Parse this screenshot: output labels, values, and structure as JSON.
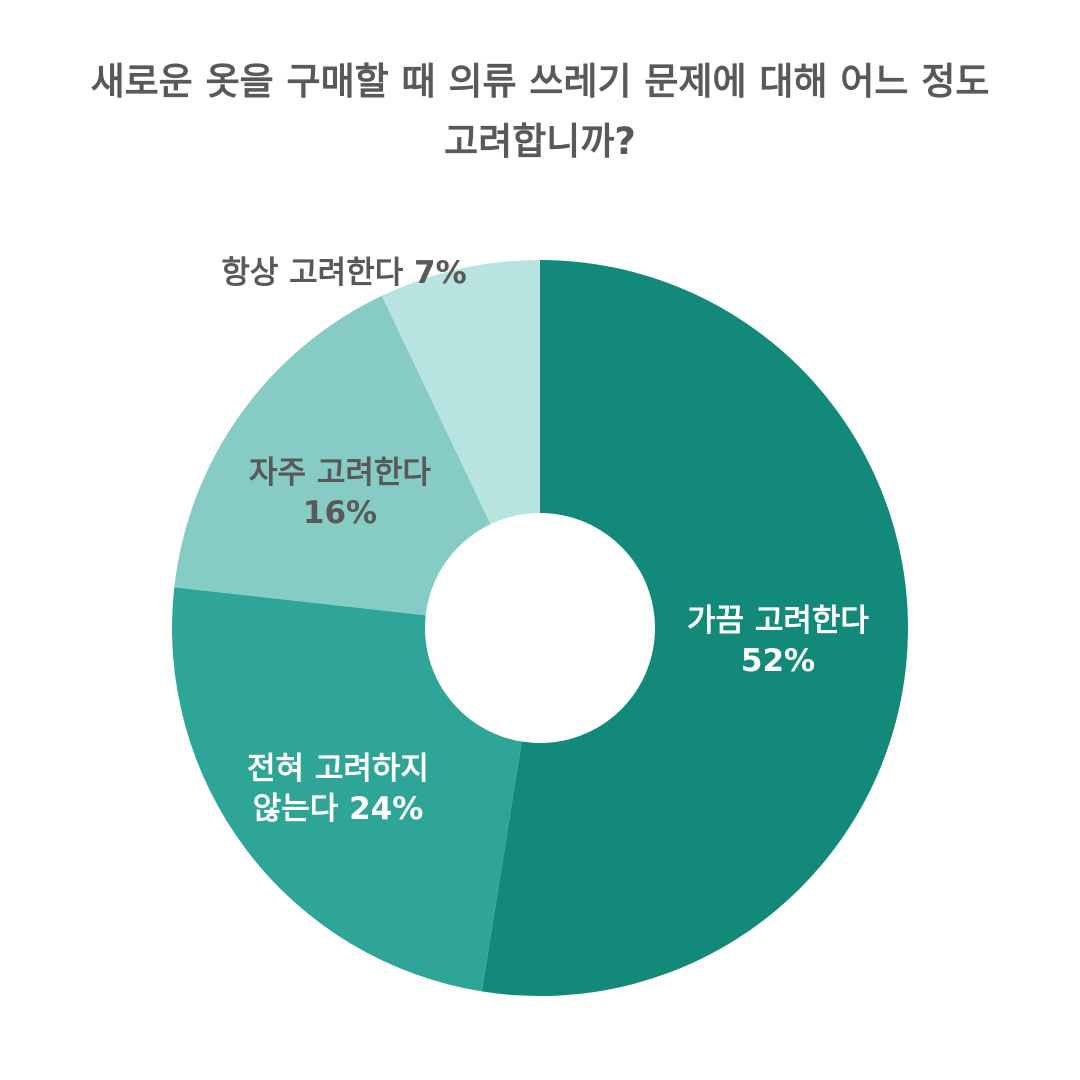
{
  "chart_data": {
    "type": "pie",
    "donut": true,
    "title": [
      "새로운 옷을 구매할 때 의류 쓰레기 문제에 대해 어느 정도",
      "고려합니까?"
    ],
    "legend": "none",
    "slices": [
      {
        "label": [
          "가끔 고려한다",
          "52%"
        ],
        "value": 52,
        "color": "#13897a",
        "text_color": "#ffffff"
      },
      {
        "label": [
          "전혀 고려하지",
          "않는다 24%"
        ],
        "value": 24,
        "color": "#2fa598",
        "text_color": "#ffffff"
      },
      {
        "label": [
          "자주 고려한다",
          "16%"
        ],
        "value": 16,
        "color": "#86ccc5",
        "text_color": "#595959"
      },
      {
        "label": [
          "항상 고려한다 7%"
        ],
        "value": 7,
        "color": "#b7e4e0",
        "text_color": "#595959"
      }
    ]
  }
}
